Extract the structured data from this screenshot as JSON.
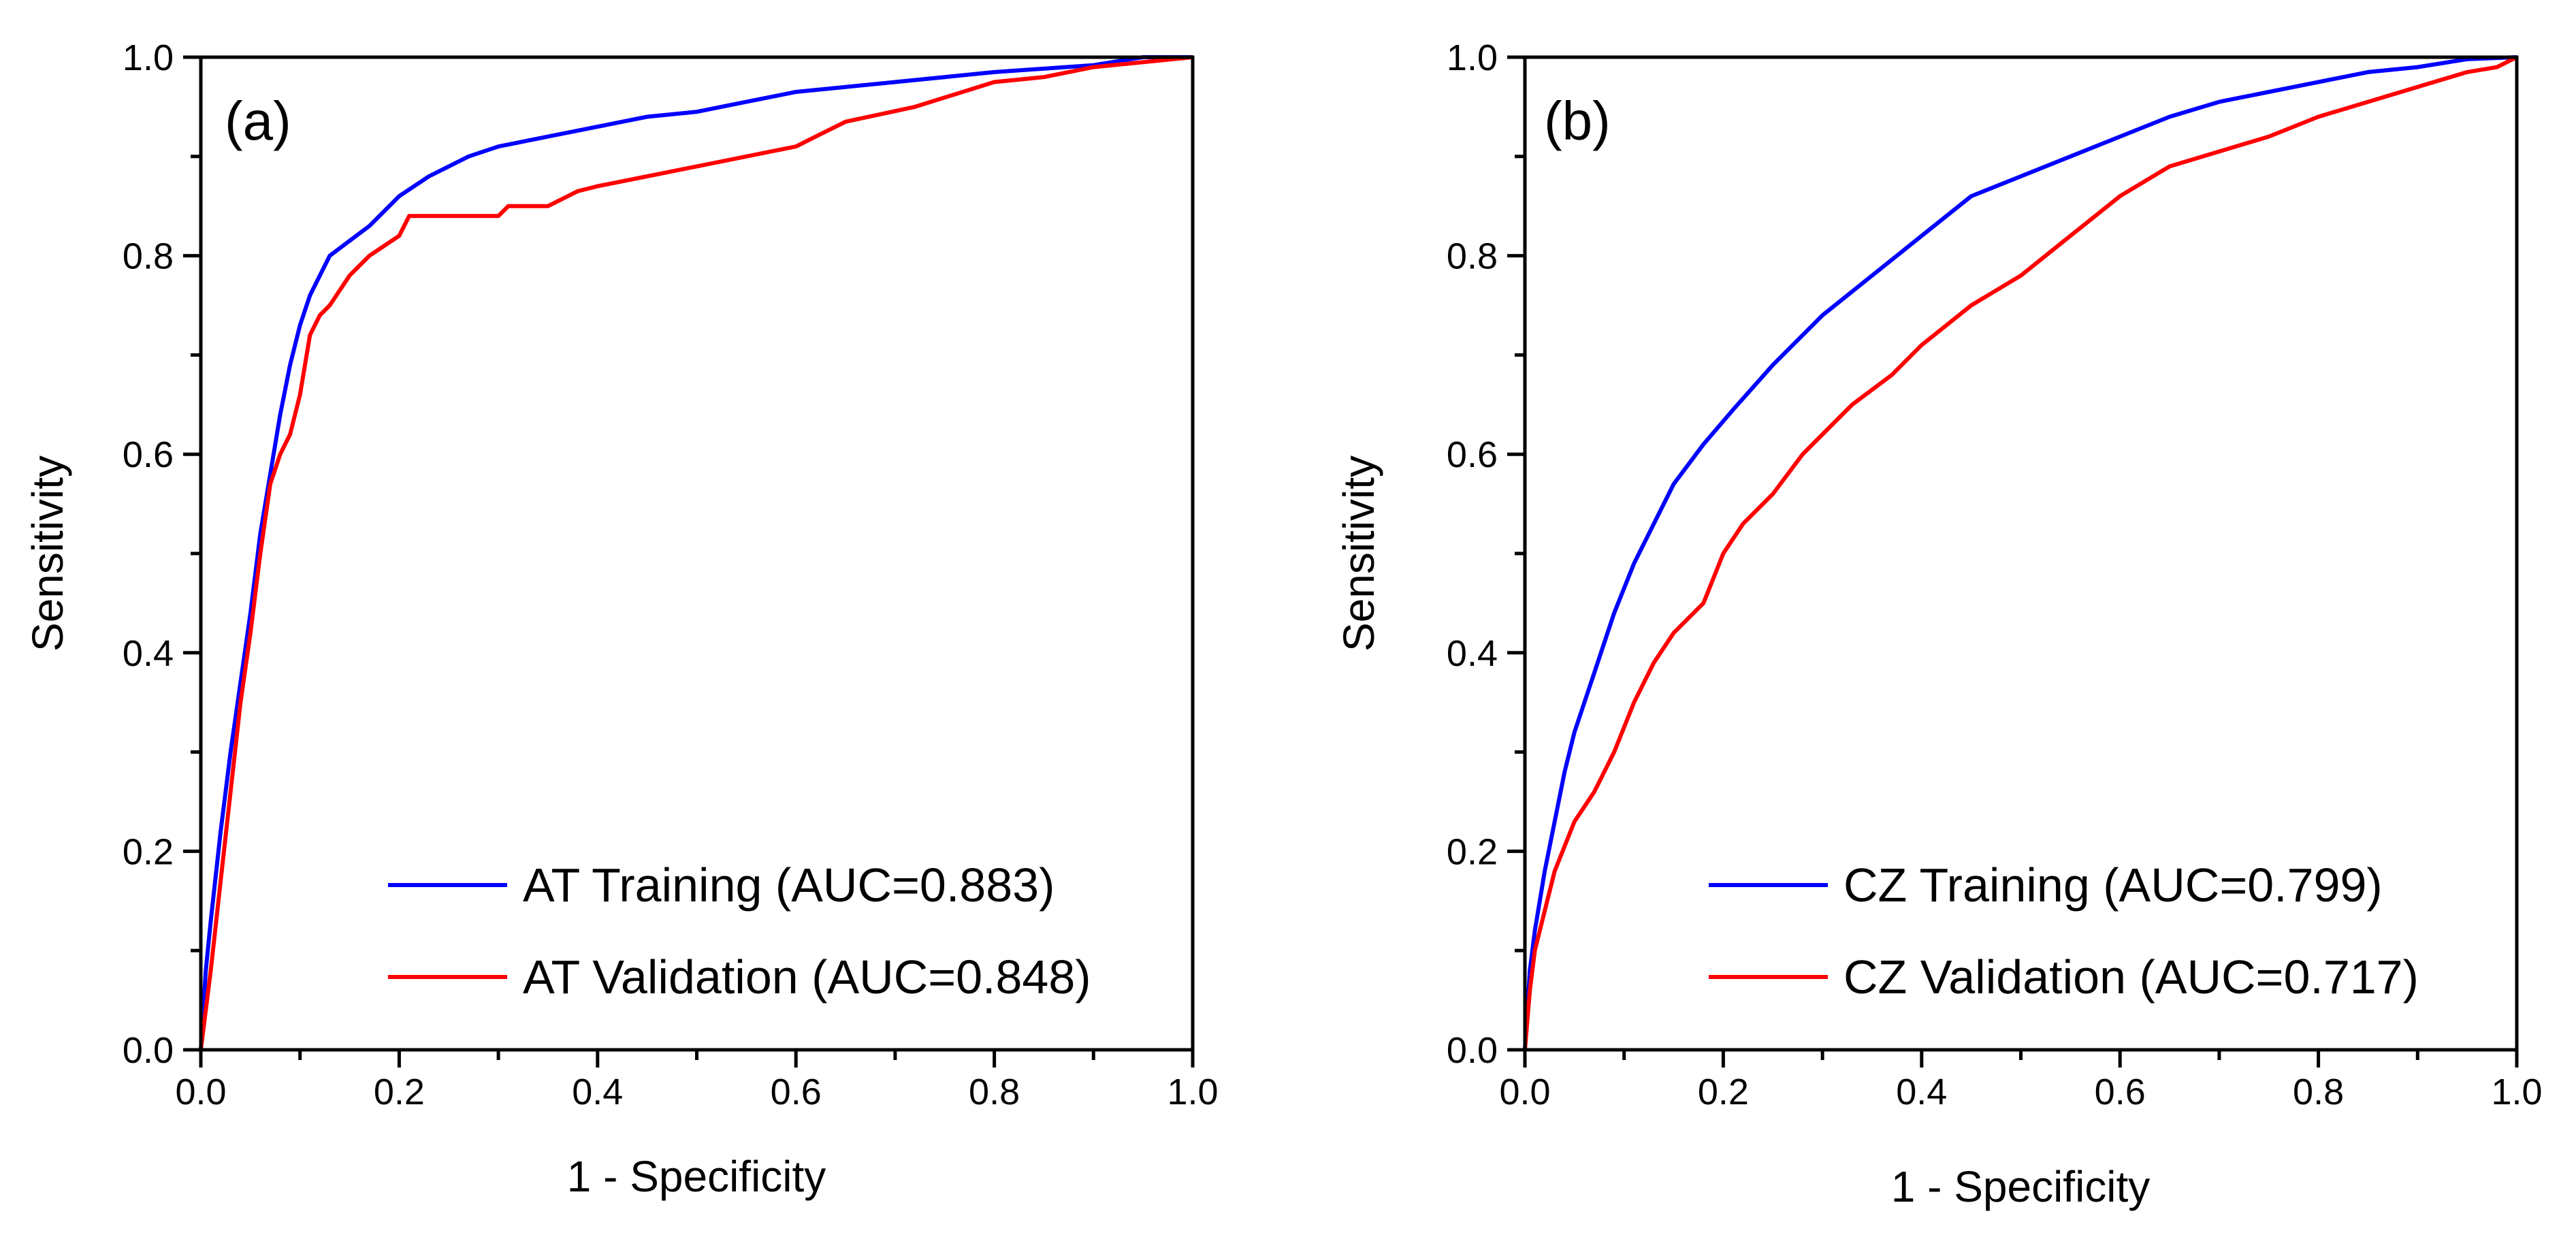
{
  "chart_data": [
    {
      "type": "line",
      "panel_label": "(a)",
      "xlabel": "1 - Specificity",
      "ylabel": "Sensitivity",
      "xlim": [
        0,
        1
      ],
      "ylim": [
        0,
        1
      ],
      "x_ticks": [
        "0.0",
        "0.2",
        "0.4",
        "0.6",
        "0.8",
        "1.0"
      ],
      "y_ticks": [
        "0.0",
        "0.2",
        "0.4",
        "0.6",
        "0.8",
        "1.0"
      ],
      "legend_position": "bottom-right",
      "series": [
        {
          "name": "AT Training (AUC=0.883)",
          "color": "#0000ff",
          "points": [
            [
              0,
              0
            ],
            [
              0.005,
              0.08
            ],
            [
              0.01,
              0.13
            ],
            [
              0.02,
              0.22
            ],
            [
              0.03,
              0.3
            ],
            [
              0.04,
              0.37
            ],
            [
              0.05,
              0.44
            ],
            [
              0.06,
              0.52
            ],
            [
              0.07,
              0.58
            ],
            [
              0.08,
              0.64
            ],
            [
              0.09,
              0.69
            ],
            [
              0.1,
              0.73
            ],
            [
              0.11,
              0.76
            ],
            [
              0.12,
              0.78
            ],
            [
              0.13,
              0.8
            ],
            [
              0.15,
              0.815
            ],
            [
              0.17,
              0.83
            ],
            [
              0.2,
              0.86
            ],
            [
              0.23,
              0.88
            ],
            [
              0.27,
              0.9
            ],
            [
              0.3,
              0.91
            ],
            [
              0.35,
              0.92
            ],
            [
              0.4,
              0.93
            ],
            [
              0.45,
              0.94
            ],
            [
              0.5,
              0.945
            ],
            [
              0.55,
              0.955
            ],
            [
              0.6,
              0.965
            ],
            [
              0.7,
              0.975
            ],
            [
              0.8,
              0.985
            ],
            [
              0.9,
              0.992
            ],
            [
              0.95,
              1.0
            ],
            [
              1,
              1
            ]
          ]
        },
        {
          "name": "AT Validation (AUC=0.848)",
          "color": "#ff0000",
          "points": [
            [
              0,
              0
            ],
            [
              0.01,
              0.08
            ],
            [
              0.02,
              0.17
            ],
            [
              0.03,
              0.26
            ],
            [
              0.04,
              0.35
            ],
            [
              0.05,
              0.42
            ],
            [
              0.06,
              0.5
            ],
            [
              0.07,
              0.57
            ],
            [
              0.08,
              0.6
            ],
            [
              0.09,
              0.62
            ],
            [
              0.1,
              0.66
            ],
            [
              0.11,
              0.72
            ],
            [
              0.12,
              0.74
            ],
            [
              0.13,
              0.75
            ],
            [
              0.15,
              0.78
            ],
            [
              0.17,
              0.8
            ],
            [
              0.2,
              0.82
            ],
            [
              0.21,
              0.84
            ],
            [
              0.3,
              0.84
            ],
            [
              0.31,
              0.85
            ],
            [
              0.35,
              0.85
            ],
            [
              0.38,
              0.865
            ],
            [
              0.4,
              0.87
            ],
            [
              0.45,
              0.88
            ],
            [
              0.5,
              0.89
            ],
            [
              0.55,
              0.9
            ],
            [
              0.6,
              0.91
            ],
            [
              0.62,
              0.92
            ],
            [
              0.65,
              0.935
            ],
            [
              0.72,
              0.95
            ],
            [
              0.8,
              0.975
            ],
            [
              0.85,
              0.98
            ],
            [
              0.9,
              0.99
            ],
            [
              1,
              1
            ]
          ]
        }
      ]
    },
    {
      "type": "line",
      "panel_label": "(b)",
      "xlabel": "1 - Specificity",
      "ylabel": "Sensitivity",
      "xlim": [
        0,
        1
      ],
      "ylim": [
        0,
        1
      ],
      "x_ticks": [
        "0.0",
        "0.2",
        "0.4",
        "0.6",
        "0.8",
        "1.0"
      ],
      "y_ticks": [
        "0.0",
        "0.2",
        "0.4",
        "0.6",
        "0.8",
        "1.0"
      ],
      "legend_position": "bottom-right",
      "series": [
        {
          "name": "CZ Training (AUC=0.799)",
          "color": "#0000ff",
          "points": [
            [
              0,
              0
            ],
            [
              0.005,
              0.08
            ],
            [
              0.01,
              0.12
            ],
            [
              0.02,
              0.18
            ],
            [
              0.03,
              0.23
            ],
            [
              0.04,
              0.28
            ],
            [
              0.05,
              0.32
            ],
            [
              0.07,
              0.38
            ],
            [
              0.09,
              0.44
            ],
            [
              0.11,
              0.49
            ],
            [
              0.13,
              0.53
            ],
            [
              0.15,
              0.57
            ],
            [
              0.18,
              0.61
            ],
            [
              0.21,
              0.645
            ],
            [
              0.25,
              0.69
            ],
            [
              0.3,
              0.74
            ],
            [
              0.35,
              0.78
            ],
            [
              0.4,
              0.82
            ],
            [
              0.45,
              0.86
            ],
            [
              0.5,
              0.88
            ],
            [
              0.55,
              0.9
            ],
            [
              0.6,
              0.92
            ],
            [
              0.65,
              0.94
            ],
            [
              0.7,
              0.955
            ],
            [
              0.75,
              0.965
            ],
            [
              0.8,
              0.975
            ],
            [
              0.85,
              0.985
            ],
            [
              0.9,
              0.99
            ],
            [
              0.95,
              0.998
            ],
            [
              1,
              1
            ]
          ]
        },
        {
          "name": "CZ Validation (AUC=0.717)",
          "color": "#ff0000",
          "points": [
            [
              0,
              0
            ],
            [
              0.005,
              0.06
            ],
            [
              0.01,
              0.1
            ],
            [
              0.02,
              0.14
            ],
            [
              0.03,
              0.18
            ],
            [
              0.05,
              0.23
            ],
            [
              0.07,
              0.26
            ],
            [
              0.09,
              0.3
            ],
            [
              0.11,
              0.35
            ],
            [
              0.13,
              0.39
            ],
            [
              0.15,
              0.42
            ],
            [
              0.18,
              0.45
            ],
            [
              0.2,
              0.5
            ],
            [
              0.22,
              0.53
            ],
            [
              0.25,
              0.56
            ],
            [
              0.28,
              0.6
            ],
            [
              0.3,
              0.62
            ],
            [
              0.33,
              0.65
            ],
            [
              0.37,
              0.68
            ],
            [
              0.4,
              0.71
            ],
            [
              0.45,
              0.75
            ],
            [
              0.5,
              0.78
            ],
            [
              0.55,
              0.82
            ],
            [
              0.6,
              0.86
            ],
            [
              0.65,
              0.89
            ],
            [
              0.7,
              0.905
            ],
            [
              0.75,
              0.92
            ],
            [
              0.8,
              0.94
            ],
            [
              0.85,
              0.955
            ],
            [
              0.9,
              0.97
            ],
            [
              0.95,
              0.985
            ],
            [
              0.98,
              0.99
            ],
            [
              1,
              1
            ]
          ]
        }
      ]
    }
  ]
}
